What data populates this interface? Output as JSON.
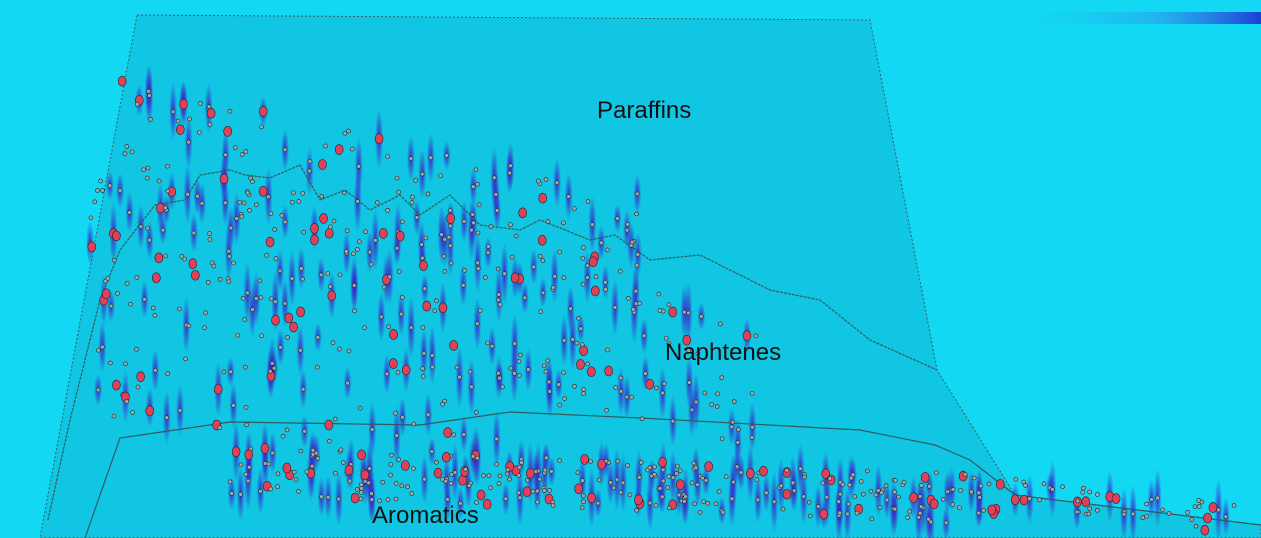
{
  "labels": {
    "paraffins": "Paraffins",
    "naphtenes": "Naphtenes",
    "aromatics": "Aromatics"
  }
}
